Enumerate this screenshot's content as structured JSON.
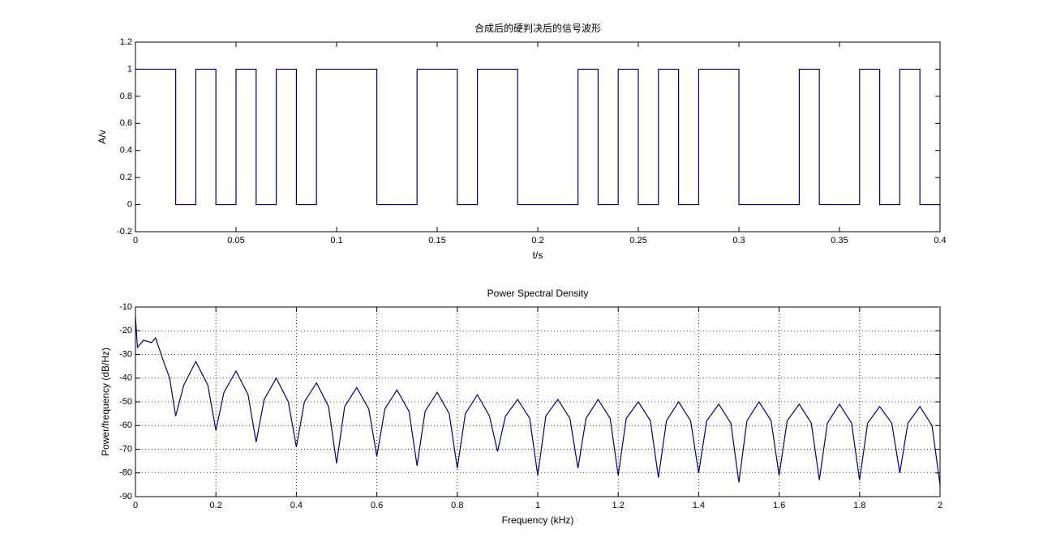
{
  "chart_data": [
    {
      "type": "line",
      "title": "合成后的硬判决后的信号波形",
      "xlabel": "t/s",
      "ylabel": "A/v",
      "xlim": [
        0,
        0.4
      ],
      "ylim": [
        -0.2,
        1.2
      ],
      "xticks": [
        0,
        0.05,
        0.1,
        0.15,
        0.2,
        0.25,
        0.3,
        0.35,
        0.4
      ],
      "yticks": [
        -0.2,
        0,
        0.2,
        0.4,
        0.6,
        0.8,
        1,
        1.2
      ],
      "grid": false,
      "color": "#00007f",
      "x": [
        0,
        0.02,
        0.02,
        0.03,
        0.03,
        0.04,
        0.04,
        0.05,
        0.05,
        0.06,
        0.06,
        0.07,
        0.07,
        0.08,
        0.08,
        0.09,
        0.09,
        0.12,
        0.12,
        0.14,
        0.14,
        0.16,
        0.16,
        0.17,
        0.17,
        0.19,
        0.19,
        0.22,
        0.22,
        0.23,
        0.23,
        0.24,
        0.24,
        0.25,
        0.25,
        0.26,
        0.26,
        0.27,
        0.27,
        0.28,
        0.28,
        0.3,
        0.3,
        0.33,
        0.33,
        0.34,
        0.34,
        0.36,
        0.36,
        0.37,
        0.37,
        0.38,
        0.38,
        0.39,
        0.39,
        0.4
      ],
      "values": [
        1,
        1,
        0,
        0,
        1,
        1,
        0,
        0,
        1,
        1,
        0,
        0,
        1,
        1,
        0,
        0,
        1,
        1,
        0,
        0,
        1,
        1,
        0,
        0,
        1,
        1,
        0,
        0,
        1,
        1,
        0,
        0,
        1,
        1,
        0,
        0,
        1,
        1,
        0,
        0,
        1,
        1,
        0,
        0,
        1,
        1,
        0,
        0,
        1,
        1,
        0,
        0,
        1,
        1,
        0,
        0
      ]
    },
    {
      "type": "line",
      "title": "Power Spectral Density",
      "xlabel": "Frequency (kHz)",
      "ylabel": "Power/frequency (dB/Hz)",
      "xlim": [
        0,
        2
      ],
      "ylim": [
        -90,
        -10
      ],
      "xticks": [
        0,
        0.2,
        0.4,
        0.6,
        0.8,
        1,
        1.2,
        1.4,
        1.6,
        1.8,
        2
      ],
      "yticks": [
        -90,
        -80,
        -70,
        -60,
        -50,
        -40,
        -30,
        -20,
        -10
      ],
      "grid": true,
      "color": "#00007f",
      "x": [
        0,
        0.005,
        0.02,
        0.04,
        0.05,
        0.07,
        0.085,
        0.1,
        0.12,
        0.15,
        0.18,
        0.2,
        0.22,
        0.25,
        0.28,
        0.3,
        0.32,
        0.35,
        0.38,
        0.4,
        0.42,
        0.45,
        0.48,
        0.5,
        0.52,
        0.55,
        0.58,
        0.6,
        0.62,
        0.65,
        0.68,
        0.7,
        0.72,
        0.75,
        0.78,
        0.8,
        0.82,
        0.85,
        0.88,
        0.9,
        0.92,
        0.95,
        0.98,
        1,
        1.02,
        1.05,
        1.08,
        1.1,
        1.12,
        1.15,
        1.18,
        1.2,
        1.22,
        1.25,
        1.28,
        1.3,
        1.32,
        1.35,
        1.38,
        1.4,
        1.42,
        1.45,
        1.48,
        1.5,
        1.52,
        1.55,
        1.58,
        1.6,
        1.62,
        1.65,
        1.68,
        1.7,
        1.72,
        1.75,
        1.78,
        1.8,
        1.82,
        1.85,
        1.88,
        1.9,
        1.92,
        1.95,
        1.98,
        2
      ],
      "values": [
        -14,
        -27,
        -24,
        -25,
        -23,
        -33,
        -40,
        -56,
        -43,
        -33,
        -43,
        -62,
        -46,
        -37,
        -47,
        -67,
        -49,
        -40,
        -50,
        -69,
        -50,
        -42,
        -52,
        -76,
        -52,
        -44,
        -53,
        -73,
        -53,
        -45,
        -54,
        -77,
        -54,
        -46,
        -55,
        -78,
        -55,
        -47,
        -56,
        -71,
        -56,
        -49,
        -57,
        -81,
        -56,
        -49,
        -57,
        -78,
        -57,
        -49,
        -57,
        -81,
        -57,
        -50,
        -58,
        -82,
        -58,
        -50,
        -58,
        -80,
        -58,
        -51,
        -59,
        -84,
        -58,
        -50,
        -58,
        -81,
        -58,
        -51,
        -59,
        -83,
        -59,
        -51,
        -59,
        -83,
        -59,
        -52,
        -59,
        -80,
        -59,
        -52,
        -60,
        -85
      ]
    }
  ]
}
